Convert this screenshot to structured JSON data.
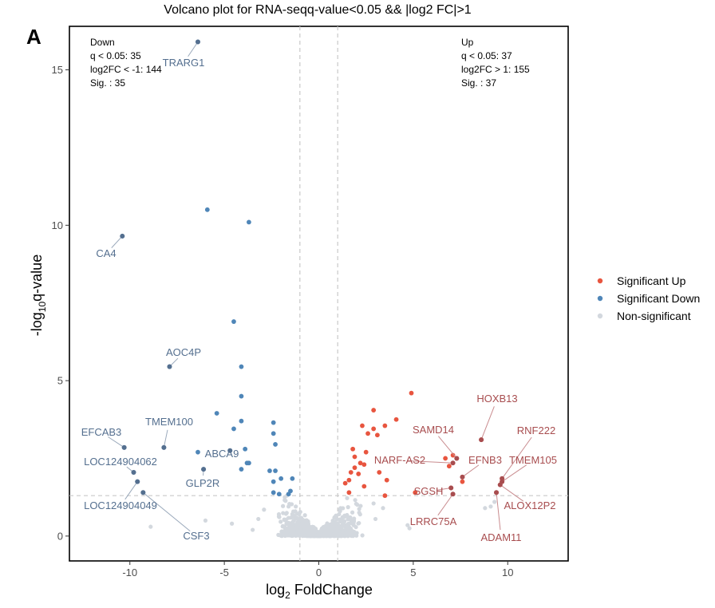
{
  "panel_letter": "A",
  "chart_data": {
    "type": "scatter",
    "title": "Volcano plot for RNA-seqq-value<0.05 && |log2 FC|>1",
    "xlabel": "log2 FoldChange",
    "ylabel": "-log10q-value",
    "xlim": [
      -13.2,
      13.2
    ],
    "ylim": [
      -0.8,
      16.4
    ],
    "xticks": [
      -10,
      -5,
      0,
      5,
      10
    ],
    "yticks": [
      0,
      5,
      10,
      15
    ],
    "x_thresholds": [
      -1,
      1
    ],
    "y_threshold": 1.3,
    "colors": {
      "up": "#e8553f",
      "down": "#4f86b8",
      "ns": "#d3d8de",
      "up_label": "#a84d4f",
      "down_label": "#546f8f",
      "threshold": "#c8c8c8"
    },
    "stats_down": [
      "Down",
      "q < 0.05: 35",
      "log2FC < -1: 144",
      "Sig. : 35"
    ],
    "stats_up": [
      "Up",
      "q < 0.05: 37",
      "log2FC > 1: 155",
      "Sig. : 37"
    ],
    "legend": [
      {
        "name": "Significant Up",
        "color": "#e8553f"
      },
      {
        "name": "Significant Down",
        "color": "#4f86b8"
      },
      {
        "name": "Non-significant",
        "color": "#d3d8de"
      }
    ],
    "series": [
      {
        "name": "Significant Down",
        "color": "#4f86b8",
        "points": [
          [
            -6.4,
            15.9
          ],
          [
            -5.9,
            10.5
          ],
          [
            -3.7,
            10.1
          ],
          [
            -10.4,
            9.65
          ],
          [
            -4.5,
            6.9
          ],
          [
            -7.9,
            5.45
          ],
          [
            -4.1,
            5.45
          ],
          [
            -4.1,
            4.5
          ],
          [
            -5.4,
            3.95
          ],
          [
            -4.1,
            3.7
          ],
          [
            -4.5,
            3.45
          ],
          [
            -2.4,
            3.65
          ],
          [
            -2.4,
            3.3
          ],
          [
            -2.3,
            2.95
          ],
          [
            -3.9,
            2.8
          ],
          [
            -4.7,
            2.75
          ],
          [
            -6.4,
            2.7
          ],
          [
            -3.8,
            2.35
          ],
          [
            -3.7,
            2.35
          ],
          [
            -8.2,
            2.85
          ],
          [
            -10.3,
            2.85
          ],
          [
            -6.1,
            2.15
          ],
          [
            -4.1,
            2.15
          ],
          [
            -2.6,
            2.1
          ],
          [
            -2.3,
            2.1
          ],
          [
            -2.0,
            1.85
          ],
          [
            -2.4,
            1.75
          ],
          [
            -1.4,
            1.85
          ],
          [
            -9.8,
            2.05
          ],
          [
            -9.6,
            1.75
          ],
          [
            -9.3,
            1.4
          ],
          [
            -2.4,
            1.4
          ],
          [
            -2.1,
            1.35
          ],
          [
            -1.6,
            1.35
          ],
          [
            -1.5,
            1.45
          ]
        ]
      },
      {
        "name": "Significant Up",
        "color": "#e8553f",
        "points": [
          [
            4.9,
            4.6
          ],
          [
            2.9,
            4.05
          ],
          [
            4.1,
            3.75
          ],
          [
            2.3,
            3.55
          ],
          [
            3.5,
            3.55
          ],
          [
            2.9,
            3.45
          ],
          [
            2.6,
            3.3
          ],
          [
            3.1,
            3.25
          ],
          [
            8.6,
            3.1
          ],
          [
            7.1,
            2.6
          ],
          [
            7.3,
            2.5
          ],
          [
            6.7,
            2.5
          ],
          [
            1.8,
            2.8
          ],
          [
            2.5,
            2.7
          ],
          [
            1.9,
            2.55
          ],
          [
            2.2,
            2.35
          ],
          [
            2.4,
            2.3
          ],
          [
            1.9,
            2.2
          ],
          [
            1.7,
            2.05
          ],
          [
            2.1,
            2.0
          ],
          [
            3.2,
            2.05
          ],
          [
            6.9,
            2.25
          ],
          [
            7.6,
            1.9
          ],
          [
            9.7,
            1.85
          ],
          [
            9.7,
            1.75
          ],
          [
            3.6,
            1.8
          ],
          [
            1.6,
            1.8
          ],
          [
            1.4,
            1.7
          ],
          [
            2.4,
            1.6
          ],
          [
            7.6,
            1.75
          ],
          [
            7.0,
            1.55
          ],
          [
            9.6,
            1.65
          ],
          [
            9.4,
            1.4
          ],
          [
            7.1,
            1.35
          ],
          [
            3.5,
            1.3
          ],
          [
            1.6,
            1.4
          ],
          [
            5.1,
            1.4
          ]
        ]
      }
    ],
    "labels": [
      {
        "text": "TRARG1",
        "group": "down",
        "point": [
          -6.4,
          15.9
        ]
      },
      {
        "text": "CA4",
        "group": "down",
        "point": [
          -10.4,
          9.65
        ]
      },
      {
        "text": "AOC4P",
        "group": "down",
        "point": [
          -7.9,
          5.45
        ]
      },
      {
        "text": "TMEM100",
        "group": "down",
        "point": [
          -8.2,
          2.85
        ]
      },
      {
        "text": "EFCAB3",
        "group": "down",
        "point": [
          -10.3,
          2.85
        ]
      },
      {
        "text": "ABCA9",
        "group": "down",
        "point": [
          -4.7,
          2.75
        ]
      },
      {
        "text": "LOC124904062",
        "group": "down",
        "point": [
          -9.8,
          2.05
        ]
      },
      {
        "text": "GLP2R",
        "group": "down",
        "point": [
          -6.1,
          2.15
        ]
      },
      {
        "text": "LOC124904049",
        "group": "down",
        "point": [
          -9.6,
          1.75
        ]
      },
      {
        "text": "CSF3",
        "group": "down",
        "point": [
          -9.3,
          1.4
        ]
      },
      {
        "text": "HOXB13",
        "group": "up",
        "point": [
          8.6,
          3.1
        ]
      },
      {
        "text": "SAMD14",
        "group": "up",
        "point": [
          7.3,
          2.5
        ]
      },
      {
        "text": "RNF222",
        "group": "up",
        "point": [
          9.7,
          1.85
        ]
      },
      {
        "text": "NARF-AS2",
        "group": "up",
        "point": [
          7.1,
          2.35
        ]
      },
      {
        "text": "EFNB3",
        "group": "up",
        "point": [
          7.6,
          1.9
        ]
      },
      {
        "text": "TMEM105",
        "group": "up",
        "point": [
          9.7,
          1.75
        ]
      },
      {
        "text": "SGSH",
        "group": "up",
        "point": [
          7.0,
          1.55
        ]
      },
      {
        "text": "LRRC75A",
        "group": "up",
        "point": [
          7.1,
          1.35
        ]
      },
      {
        "text": "ALOX12P2",
        "group": "up",
        "point": [
          9.6,
          1.65
        ]
      },
      {
        "text": "ADAM11",
        "group": "up",
        "point": [
          9.4,
          1.4
        ]
      }
    ]
  }
}
